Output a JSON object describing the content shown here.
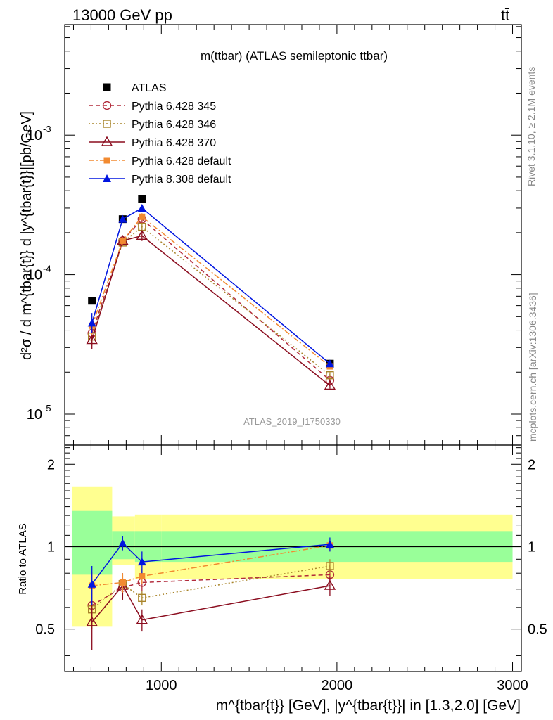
{
  "header": {
    "left": "13000 GeV pp",
    "right": "tt̄"
  },
  "side_texts": {
    "rivet": "Rivet 3.1.10, ≥ 2.1M events",
    "mcplots": "mcplots.cern.ch [arXiv:1306.3436]"
  },
  "chart_data": {
    "type": "line",
    "title": "m(ttbar) (ATLAS semileptonic ttbar)",
    "watermark": "ATLAS_2019_I1750330",
    "xlabel": "m^{tbar{t}} [GeV], |y^{tbar{t}}| in [1.3,2.0] [GeV]",
    "ylabel": "d²σ / d m^{tbar{t}} d |y^{tbar{t}}|[pb/GeV]",
    "ratio_ylabel": "Ratio to ATLAS",
    "xlim": [
      450,
      3050
    ],
    "ylim_main": [
      6e-06,
      0.0062
    ],
    "yscale_main": "log",
    "ylim_ratio": [
      0.35,
      2.35
    ],
    "yscale_ratio": "log",
    "x_ticks": [
      "1000",
      "2000",
      "3000"
    ],
    "y_ticks_main": [
      "10^-5",
      "10^-4",
      "10^-3"
    ],
    "y_ticks_ratio": [
      "0.5",
      "1",
      "2"
    ],
    "legend_position": "top-left",
    "bins": [
      [
        490,
        720
      ],
      [
        720,
        850
      ],
      [
        850,
        1000
      ],
      [
        1000,
        3000
      ]
    ],
    "x": [
      605,
      780,
      890,
      1960
    ],
    "band_inner": [
      [
        0.79,
        1.35
      ],
      [
        0.9,
        1.14
      ],
      [
        0.88,
        1.14
      ],
      [
        0.88,
        1.14
      ]
    ],
    "band_outer": [
      [
        0.51,
        1.66
      ],
      [
        0.86,
        1.29
      ],
      [
        0.76,
        1.31
      ],
      [
        0.76,
        1.31
      ]
    ],
    "series": [
      {
        "name": "ATLAS",
        "color": "#000000",
        "marker": "square-filled",
        "style": "none",
        "values": [
          6.5e-05,
          0.00025,
          0.00035,
          2.3e-05
        ]
      },
      {
        "name": "Pythia 6.428 345",
        "color": "#b22b3b",
        "marker": "circle-open",
        "style": "dashed",
        "values": [
          3.8e-05,
          0.000175,
          0.00025,
          1.75e-05
        ],
        "errors": [
          0.16,
          0.06,
          0.06,
          0.05
        ],
        "ratio": [
          0.61,
          0.71,
          0.74,
          0.79
        ],
        "ratio_errors": [
          0.09,
          0.06,
          0.05,
          0.05
        ]
      },
      {
        "name": "Pythia 6.428 346",
        "color": "#a9852b",
        "marker": "square-open",
        "style": "dotted",
        "values": [
          3.6e-05,
          0.00017,
          0.00022,
          1.9e-05
        ],
        "errors": [
          0.16,
          0.06,
          0.06,
          0.05
        ],
        "ratio": [
          0.59,
          0.73,
          0.65,
          0.85
        ],
        "ratio_errors": [
          0.09,
          0.06,
          0.04,
          0.05
        ]
      },
      {
        "name": "Pythia 6.428 370",
        "color": "#8b0d1f",
        "marker": "triangle-open",
        "style": "solid",
        "values": [
          3.4e-05,
          0.000175,
          0.00019,
          1.6e-05
        ],
        "errors": [
          0.16,
          0.06,
          0.09,
          0.05
        ],
        "ratio": [
          0.53,
          0.72,
          0.54,
          0.72
        ],
        "ratio_errors": [
          0.11,
          0.08,
          0.05,
          0.06
        ]
      },
      {
        "name": "Pythia 6.428 default",
        "color": "#f28a30",
        "marker": "square-filled-small",
        "style": "dashdot",
        "values": [
          4.3e-05,
          0.000175,
          0.00026,
          2.2e-05
        ],
        "errors": [
          0.16,
          0.06,
          0.06,
          0.05
        ],
        "ratio": [
          0.72,
          0.74,
          0.78,
          1.01
        ],
        "ratio_errors": [
          0.09,
          0.06,
          0.05,
          0.05
        ]
      },
      {
        "name": "Pythia 8.308 default",
        "color": "#0015e0",
        "marker": "triangle-filled",
        "style": "solid",
        "values": [
          4.5e-05,
          0.00025,
          0.0003,
          2.3e-05
        ],
        "errors": [
          0.18,
          0.06,
          0.06,
          0.05
        ],
        "ratio": [
          0.73,
          1.03,
          0.88,
          1.02
        ],
        "ratio_errors": [
          0.12,
          0.06,
          0.08,
          0.06
        ]
      }
    ]
  }
}
